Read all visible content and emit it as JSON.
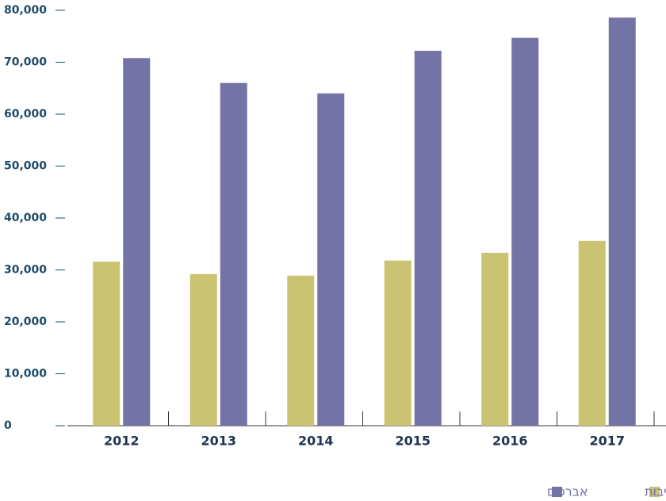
{
  "chart_data": {
    "type": "bar",
    "categories": [
      "2012",
      "2013",
      "2014",
      "2015",
      "2016",
      "2017"
    ],
    "series": [
      {
        "name": "תלמידי ישיבות",
        "color": "#c9c372",
        "values": [
          31600,
          29200,
          28900,
          31800,
          33300,
          35600
        ]
      },
      {
        "name": "אברכים",
        "color": "#7473a6",
        "values": [
          70800,
          66000,
          64000,
          72200,
          74700,
          78600
        ]
      }
    ],
    "ylim": [
      0,
      80000
    ],
    "yticks": [
      0,
      {
        "value": 10000,
        "label": "10,000"
      },
      {
        "value": 20000,
        "label": "20,000"
      },
      {
        "value": 30000,
        "label": "30,000"
      },
      {
        "value": 40000,
        "label": "40,000"
      },
      {
        "value": 50000,
        "label": "50,000"
      },
      {
        "value": 60000,
        "label": "60,000"
      },
      {
        "value": 70000,
        "label": "70,000"
      },
      {
        "value": 80000,
        "label": "80,000"
      }
    ],
    "legend": "bottom-right"
  }
}
